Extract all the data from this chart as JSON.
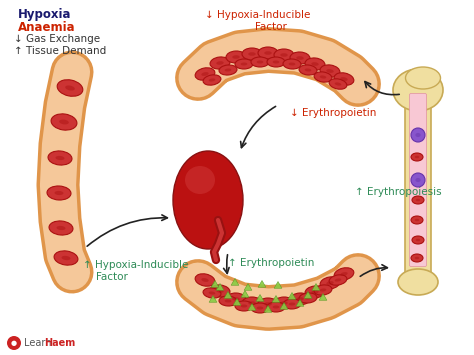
{
  "bg_color": "#ffffff",
  "title_hypoxia": "Hypoxia",
  "title_anaemia": "Anaemia",
  "text_gas": "↓ Gas Exchange",
  "text_tissue": "↑ Tissue Demand",
  "hypoxia_color": "#1a1a6e",
  "anaemia_color": "#cc2200",
  "arrow_color_green": "#2e8b57",
  "arrow_color_red": "#cc2200",
  "arrow_color_black": "#222222",
  "label_hif_down": "↓ Hypoxia-Inducible\n        Factor",
  "label_epo_down": "↓ Erythropoietin",
  "label_erythropoiesis_up": "↑ Erythropoiesis",
  "label_epo_up": "↑ Erythropoietin",
  "label_hif_up": "↑ Hypoxia-Inducible\n    Factor",
  "vessel_fill": "#f5c89a",
  "vessel_edge": "#e0954a",
  "rbc_color": "#cc3333",
  "rbc_edge": "#aa1111",
  "kidney_color": "#bb1111",
  "bone_fill": "#f0dfa0",
  "bone_edge": "#c8aa55",
  "marrow_fill": "#f8c8d4",
  "stem_cell_purple": "#8855cc",
  "green_dots_color": "#88cc44"
}
